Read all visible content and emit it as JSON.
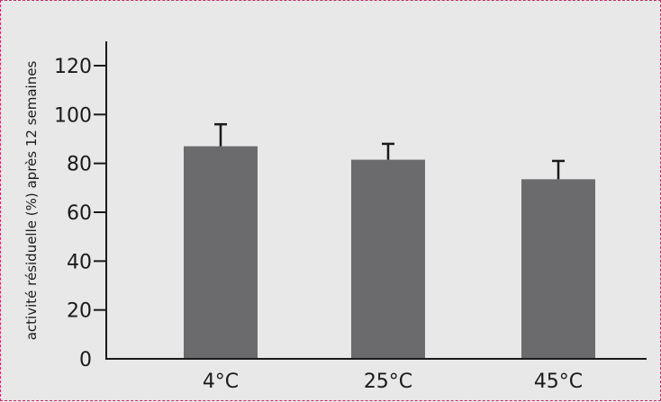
{
  "chart_data": {
    "type": "bar",
    "title": "",
    "xlabel": "",
    "ylabel": "activité résiduelle (%) après 12 semaines",
    "categories": [
      "4°C",
      "25°C",
      "45°C"
    ],
    "series": [
      {
        "values": [
          87,
          81.5,
          73.5
        ],
        "error_upper": [
          96,
          88,
          81
        ]
      }
    ],
    "ylim": [
      0,
      120
    ],
    "yticks": [
      0,
      20,
      40,
      60,
      80,
      100,
      120
    ],
    "grid": false,
    "bar_color": "#6b6b6d",
    "error_bar_color": "#1a1a1a",
    "background_color": "#e8e8e8"
  }
}
